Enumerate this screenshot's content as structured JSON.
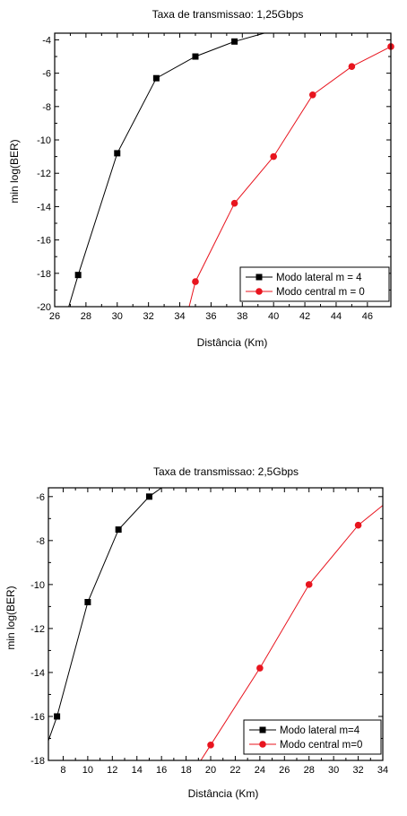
{
  "chart_data": [
    {
      "type": "line",
      "title": "Taxa de transmissao: 1,25Gbps",
      "xlabel": "Distância (Km)",
      "ylabel": "min log(BER)",
      "xlim": [
        26,
        47.5
      ],
      "ylim": [
        -20,
        -3.6
      ],
      "xticks": [
        "26",
        "28",
        "30",
        "32",
        "34",
        "36",
        "38",
        "40",
        "42",
        "44",
        "46"
      ],
      "yticks": [
        "-4",
        "-6",
        "-8",
        "-10",
        "-12",
        "-14",
        "-16",
        "-18",
        "-20"
      ],
      "xtick_values": [
        26,
        28,
        30,
        32,
        34,
        36,
        38,
        40,
        42,
        44,
        46
      ],
      "ytick_values": [
        -4,
        -6,
        -8,
        -10,
        -12,
        -14,
        -16,
        -18,
        -20
      ],
      "legend_position": "bottom-right",
      "grid": false,
      "series": [
        {
          "name": "Modo lateral m = 4",
          "color": "#000000",
          "marker": "square",
          "x": [
            27.5,
            30,
            32.5,
            35,
            37.5
          ],
          "y": [
            -18.1,
            -10.8,
            -6.3,
            -5.0,
            -4.1
          ],
          "line_x": [
            26.9,
            27.5,
            30,
            32.5,
            35,
            37.5,
            39.4
          ],
          "line_y": [
            -20,
            -18.1,
            -10.8,
            -6.3,
            -5.0,
            -4.1,
            -3.6
          ]
        },
        {
          "name": "Modo central m = 0",
          "color": "#e8141e",
          "marker": "circle",
          "x": [
            35,
            37.5,
            40,
            42.5,
            45,
            47.5
          ],
          "y": [
            -18.5,
            -13.8,
            -11.0,
            -7.3,
            -5.6,
            -4.4
          ],
          "line_x": [
            34.6,
            35,
            37.5,
            40,
            42.5,
            45,
            47.5
          ],
          "line_y": [
            -20,
            -18.5,
            -13.8,
            -11.0,
            -7.3,
            -5.6,
            -4.4
          ]
        }
      ]
    },
    {
      "type": "line",
      "title": "Taxa de transmissao: 2,5Gbps",
      "xlabel": "Distância (Km)",
      "ylabel": "min log(BER)",
      "xlim": [
        6.8,
        34
      ],
      "ylim": [
        -18,
        -5.6
      ],
      "xticks": [
        "8",
        "10",
        "12",
        "14",
        "16",
        "18",
        "20",
        "22",
        "24",
        "26",
        "28",
        "30",
        "32",
        "34"
      ],
      "yticks": [
        "-6",
        "-8",
        "-10",
        "-12",
        "-14",
        "-16",
        "-18"
      ],
      "xtick_values": [
        8,
        10,
        12,
        14,
        16,
        18,
        20,
        22,
        24,
        26,
        28,
        30,
        32,
        34
      ],
      "ytick_values": [
        -6,
        -8,
        -10,
        -12,
        -14,
        -16,
        -18
      ],
      "legend_position": "bottom-right",
      "grid": false,
      "series": [
        {
          "name": "Modo lateral m=4",
          "color": "#000000",
          "marker": "square",
          "x": [
            7.5,
            10,
            12.5,
            15
          ],
          "y": [
            -16.0,
            -10.8,
            -7.5,
            -6.0
          ],
          "line_x": [
            6.8,
            7.5,
            10,
            12.5,
            15,
            16.0
          ],
          "line_y": [
            -17.1,
            -16.0,
            -10.8,
            -7.5,
            -6.0,
            -5.6
          ]
        },
        {
          "name": "Modo central m=0",
          "color": "#e8141e",
          "marker": "circle",
          "x": [
            20,
            24,
            28,
            32
          ],
          "y": [
            -17.3,
            -13.8,
            -10.0,
            -7.3
          ],
          "line_x": [
            19.2,
            20,
            24,
            28,
            32,
            34
          ],
          "line_y": [
            -18,
            -17.3,
            -13.8,
            -10.0,
            -7.3,
            -6.4
          ]
        }
      ]
    }
  ]
}
